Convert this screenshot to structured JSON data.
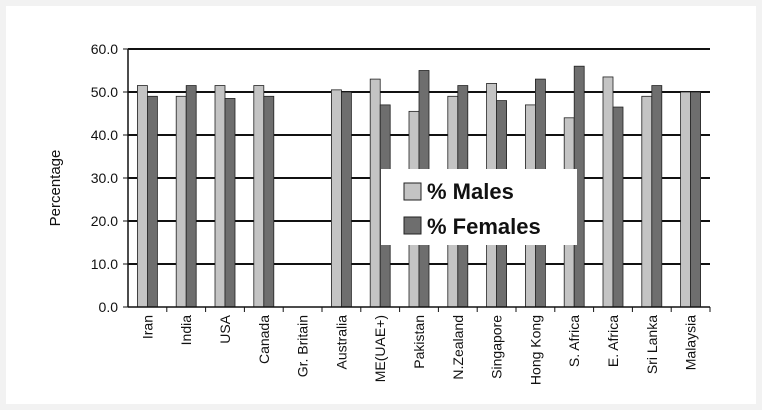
{
  "chart_data": {
    "type": "bar",
    "title": "",
    "xlabel": "",
    "ylabel": "Percentage",
    "ylim": [
      0,
      60
    ],
    "yticks": [
      "0.0",
      "10.0",
      "20.0",
      "30.0",
      "40.0",
      "50.0",
      "60.0"
    ],
    "grid": true,
    "legend_position": "center-right",
    "categories": [
      "Iran",
      "India",
      "USA",
      "Canada",
      "Gr. Britain",
      "Australia",
      "ME(UAE+)",
      "Pakistan",
      "N.Zealand",
      "Singapore",
      "Hong Kong",
      "S. Africa",
      "E. Africa",
      "Sri Lanka",
      "Malaysia"
    ],
    "series": [
      {
        "name": "% Males",
        "color": "#c4c4c4",
        "values": [
          51.5,
          49.0,
          51.5,
          51.5,
          null,
          50.5,
          53.0,
          45.5,
          49.0,
          52.0,
          47.0,
          44.0,
          53.5,
          49.0,
          50.0
        ]
      },
      {
        "name": "% Females",
        "color": "#6e6e6e",
        "values": [
          49.0,
          51.5,
          48.5,
          49.0,
          null,
          50.0,
          47.0,
          55.0,
          51.5,
          48.0,
          53.0,
          56.0,
          46.5,
          51.5,
          50.0
        ]
      }
    ]
  }
}
